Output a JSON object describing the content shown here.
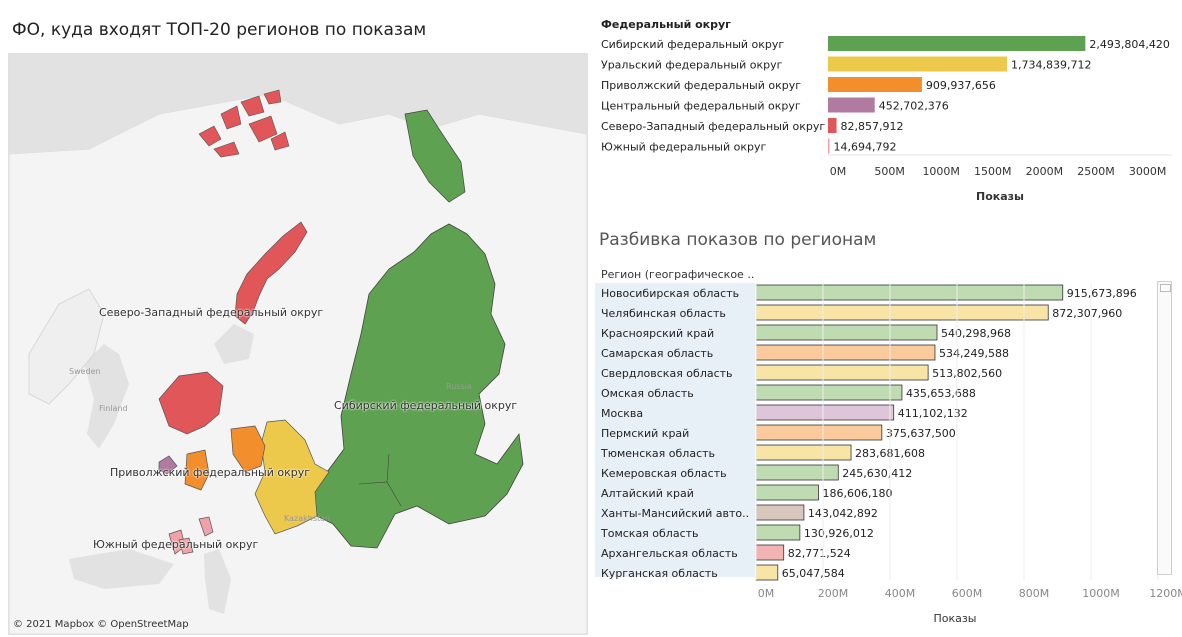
{
  "map": {
    "title": "ФО, куда входят ТОП-20 регионов по показам",
    "credit": "© 2021 Mapbox © OpenStreetMap",
    "labels": {
      "northwest": "Северо-Западный федеральный округ",
      "siberian": "Сибирский федеральный округ",
      "volga": "Приволжский федеральный округ",
      "southern": "Южный федеральный округ"
    },
    "countries": {
      "sweden": "Sweden",
      "finland": "Finland",
      "kazakhstan": "Kazakhstan",
      "russia": "Russia"
    }
  },
  "colors": {
    "siberian": "#5ea150",
    "ural": "#ecc94b",
    "volga": "#f28e2b",
    "central": "#b07aa1",
    "northwest": "#e15759",
    "southern": "#f1a2a9"
  },
  "chart_data": [
    {
      "type": "bar",
      "orientation": "horizontal",
      "header": "Федеральный округ",
      "xlabel": "Показы",
      "xlim": [
        0,
        3000000000
      ],
      "xticks": [
        "0M",
        "500M",
        "1000M",
        "1500M",
        "2000M",
        "2500M",
        "3000M"
      ],
      "categories": [
        "Сибирский федеральный округ",
        "Уральский федеральный округ",
        "Приволжский федеральный округ",
        "Центральный федеральный округ",
        "Северо-Западный федеральный округ",
        "Южный федеральный округ"
      ],
      "values": [
        2493804420,
        1734839712,
        909937656,
        452702376,
        82857912,
        14694792
      ],
      "value_labels": [
        "2,493,804,420",
        "1,734,839,712",
        "909,937,656",
        "452,702,376",
        "82,857,912",
        "14,694,792"
      ],
      "colors": [
        "#5ea150",
        "#ecc94b",
        "#f28e2b",
        "#b07aa1",
        "#e15759",
        "#f1a2a9"
      ]
    },
    {
      "type": "bar",
      "orientation": "horizontal",
      "title": "Разбивка показов по регионам",
      "header": "Регион (географическое ..",
      "xlabel": "Показы",
      "xlim": [
        0,
        1200000000
      ],
      "xticks": [
        "0M",
        "200M",
        "400M",
        "600M",
        "800M",
        "1000M",
        "1200M"
      ],
      "categories": [
        "Новосибирская область",
        "Челябинская область",
        "Красноярский край",
        "Самарская область",
        "Свердловская область",
        "Омская область",
        "Москва",
        "Пермский край",
        "Тюменская область",
        "Кемеровская область",
        "Алтайский край",
        "Ханты-Мансийский авто..",
        "Томская область",
        "Архангельская область",
        "Курганская область"
      ],
      "values": [
        915673896,
        872307960,
        540298968,
        534249588,
        513802560,
        435653688,
        411102132,
        375637500,
        283681608,
        245630412,
        186606180,
        143042892,
        130926012,
        82771524,
        65047584
      ],
      "value_labels": [
        "915,673,896",
        "872,307,960",
        "540,298,968",
        "534,249,588",
        "513,802,560",
        "435,653,688",
        "411,102,132",
        "375,637,500",
        "283,681,608",
        "245,630,412",
        "186,606,180",
        "143,042,892",
        "130,926,012",
        "82,771,524",
        "65,047,584"
      ],
      "colors": [
        "#bfdbb2",
        "#f8e4a5",
        "#bfdbb2",
        "#fac99c",
        "#f8e4a5",
        "#bfdbb2",
        "#dfc5da",
        "#fac99c",
        "#f8e4a5",
        "#bfdbb2",
        "#bfdbb2",
        "#d9c6bd",
        "#bfdbb2",
        "#f2b3b4",
        "#f8e4a5"
      ]
    }
  ]
}
